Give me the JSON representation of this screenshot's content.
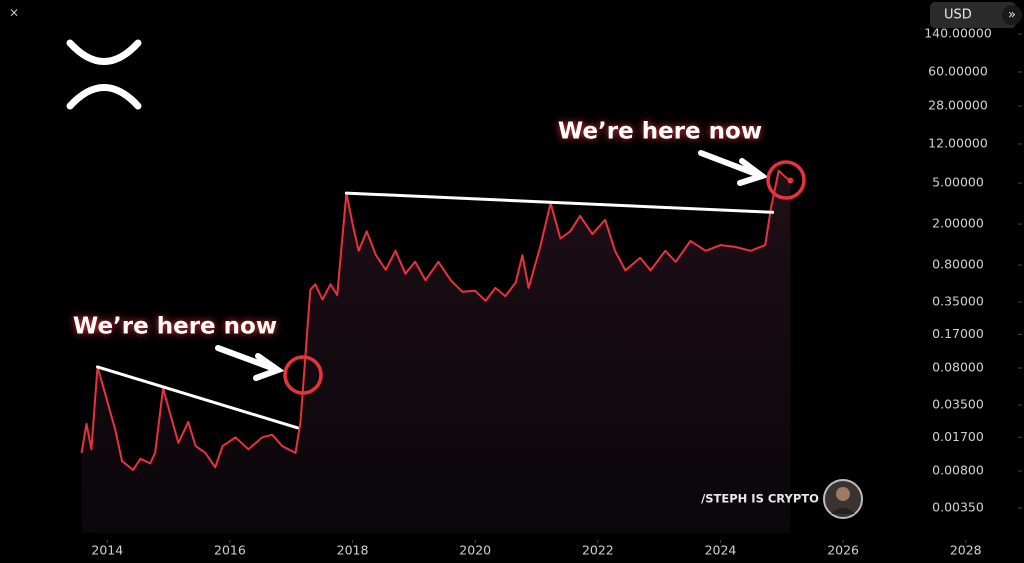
{
  "chart_data": {
    "type": "line",
    "log_scale": true,
    "grid": false,
    "xlim": [
      2012.25,
      2028.95
    ],
    "xticks": [
      2014,
      2016,
      2018,
      2020,
      2022,
      2024,
      2026,
      2028
    ],
    "ylim": [
      0.002,
      300
    ],
    "yticks": [
      {
        "value": 140,
        "label": "140.00000"
      },
      {
        "value": 60,
        "label": "60.00000"
      },
      {
        "value": 28,
        "label": "28.00000"
      },
      {
        "value": 12,
        "label": "12.00000"
      },
      {
        "value": 5,
        "label": "5.00000"
      },
      {
        "value": 2,
        "label": "2.00000"
      },
      {
        "value": 0.8,
        "label": "0.80000"
      },
      {
        "value": 0.35,
        "label": "0.35000"
      },
      {
        "value": 0.17,
        "label": "0.17000"
      },
      {
        "value": 0.08,
        "label": "0.08000"
      },
      {
        "value": 0.035,
        "label": "0.03500"
      },
      {
        "value": 0.017,
        "label": "0.01700"
      },
      {
        "value": 0.008,
        "label": "0.00800"
      },
      {
        "value": 0.0035,
        "label": "0.00350"
      }
    ],
    "currency": "USD",
    "watermark": "/STEPH IS CRYPTO",
    "annotations": [
      "We’re here now",
      "We’re here now"
    ],
    "series": [
      {
        "color": "#e8323c",
        "x": [
          2013.58,
          2013.66,
          2013.74,
          2013.84,
          2013.97,
          2014.13,
          2014.24,
          2014.42,
          2014.54,
          2014.7,
          2014.78,
          2014.91,
          2015.03,
          2015.16,
          2015.32,
          2015.44,
          2015.6,
          2015.76,
          2015.88,
          2016.09,
          2016.3,
          2016.53,
          2016.69,
          2016.85,
          2017.07,
          2017.15,
          2017.31,
          2017.39,
          2017.51,
          2017.64,
          2017.75,
          2017.9,
          2018.0,
          2018.1,
          2018.23,
          2018.38,
          2018.54,
          2018.7,
          2018.86,
          2019.02,
          2019.19,
          2019.4,
          2019.6,
          2019.79,
          2020.0,
          2020.17,
          2020.33,
          2020.49,
          2020.66,
          2020.77,
          2020.87,
          2021.06,
          2021.23,
          2021.39,
          2021.55,
          2021.71,
          2021.91,
          2022.12,
          2022.28,
          2022.45,
          2022.69,
          2022.86,
          2023.1,
          2023.27,
          2023.51,
          2023.76,
          2024.0,
          2024.24,
          2024.49,
          2024.73,
          2024.82,
          2024.95,
          2025.06,
          2025.14
        ],
        "values": [
          0.012,
          0.023,
          0.013,
          0.082,
          0.044,
          0.02,
          0.01,
          0.0082,
          0.0105,
          0.0095,
          0.012,
          0.051,
          0.028,
          0.015,
          0.024,
          0.014,
          0.012,
          0.0087,
          0.014,
          0.017,
          0.013,
          0.017,
          0.018,
          0.014,
          0.012,
          0.024,
          0.46,
          0.52,
          0.37,
          0.52,
          0.41,
          4.0,
          2.0,
          1.1,
          1.7,
          1.0,
          0.72,
          1.1,
          0.66,
          0.86,
          0.57,
          0.86,
          0.57,
          0.44,
          0.45,
          0.36,
          0.48,
          0.4,
          0.54,
          1.0,
          0.48,
          1.2,
          3.2,
          1.45,
          1.7,
          2.4,
          1.6,
          2.2,
          1.1,
          0.71,
          0.94,
          0.71,
          1.1,
          0.86,
          1.37,
          1.1,
          1.25,
          1.2,
          1.1,
          1.25,
          2.8,
          6.6,
          5.7,
          5.3
        ]
      }
    ],
    "trendlines": [
      {
        "color": "#ffffff",
        "x": [
          2013.84,
          2017.1
        ],
        "values": [
          0.082,
          0.021
        ]
      },
      {
        "color": "#ffffff",
        "x": [
          2017.9,
          2024.85
        ],
        "values": [
          4.0,
          2.6
        ]
      }
    ]
  }
}
